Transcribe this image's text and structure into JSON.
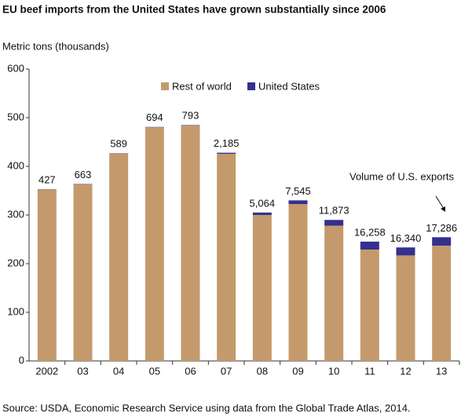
{
  "chart_data": {
    "type": "stacked_bar",
    "title": "EU beef imports from the United States have grown substantially since 2006",
    "y_axis_label": "Metric tons (thousands)",
    "source": "Source: USDA, Economic Research Service using data from the Global Trade Atlas, 2014.",
    "annotation": "Volume of U.S. exports",
    "categories": [
      "2002",
      "03",
      "04",
      "05",
      "06",
      "07",
      "08",
      "09",
      "10",
      "11",
      "12",
      "13"
    ],
    "series": [
      {
        "name": "Rest of world",
        "color": "#c49a6c",
        "values": [
          352.6,
          363.3,
          426.4,
          480.3,
          484.2,
          425.8,
          300,
          322.5,
          278,
          229,
          217,
          237
        ]
      },
      {
        "name": "United States",
        "color": "#33308f",
        "values": [
          0.427,
          0.663,
          0.589,
          0.694,
          0.793,
          2.185,
          5.064,
          7.545,
          11.873,
          16.258,
          16.34,
          17.286
        ],
        "value_labels": [
          "427",
          "663",
          "589",
          "694",
          "793",
          "2,185",
          "5,064",
          "7,545",
          "11,873",
          "16,258",
          "16,340",
          "17,286"
        ]
      }
    ],
    "ylim": [
      0,
      600
    ],
    "yticks": [
      0,
      100,
      200,
      300,
      400,
      500,
      600
    ],
    "grid": false,
    "legend": "top"
  }
}
